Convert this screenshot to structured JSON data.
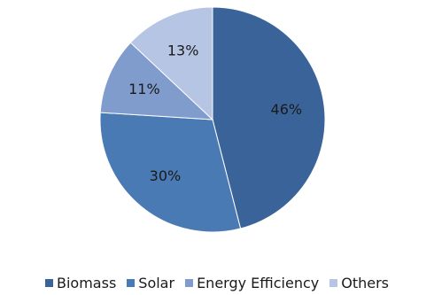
{
  "chart_data": {
    "type": "pie",
    "title": "",
    "categories": [
      "Biomass",
      "Solar",
      "Energy Efficiency",
      "Others"
    ],
    "values": [
      46,
      30,
      11,
      13
    ],
    "labels": [
      "46%",
      "30%",
      "11%",
      "13%"
    ],
    "colors": [
      "#3a6499",
      "#4a7ab4",
      "#7f9ccd",
      "#b6c5e3"
    ],
    "start_angle_deg": 0,
    "direction": "clockwise",
    "legend_position": "bottom"
  }
}
